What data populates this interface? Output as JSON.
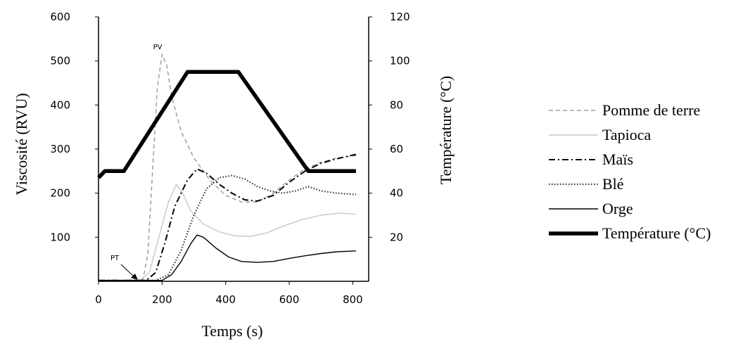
{
  "chart_data": {
    "type": "line",
    "xlabel": "Temps  (s)",
    "ylabel": "Viscosité  (RVU)",
    "y2label": "Température   (°C)",
    "xlim": [
      0,
      850
    ],
    "ylim": [
      0,
      600
    ],
    "y2lim": [
      0,
      120
    ],
    "x_ticks": [
      "0",
      "200",
      "400",
      "600",
      "800"
    ],
    "y_ticks": [
      "100",
      "200",
      "300",
      "400",
      "500",
      "600"
    ],
    "y2_ticks": [
      "20",
      "40",
      "60",
      "80",
      "100",
      "120"
    ],
    "grid": false,
    "legend_position": "right",
    "annotations": [
      {
        "text": "PV",
        "x": 200,
        "y": 515
      },
      {
        "text": "PT",
        "x": 120,
        "y": 10
      }
    ],
    "series": [
      {
        "name": "Pomme  de terre",
        "style": "dashed",
        "color": "#a0a0a0",
        "axis": "left",
        "points": [
          [
            0,
            2
          ],
          [
            120,
            2
          ],
          [
            140,
            5
          ],
          [
            155,
            60
          ],
          [
            170,
            250
          ],
          [
            185,
            440
          ],
          [
            200,
            515
          ],
          [
            215,
            490
          ],
          [
            230,
            420
          ],
          [
            260,
            340
          ],
          [
            300,
            280
          ],
          [
            350,
            230
          ],
          [
            400,
            195
          ],
          [
            450,
            180
          ],
          [
            500,
            180
          ],
          [
            550,
            200
          ],
          [
            600,
            230
          ],
          [
            650,
            255
          ],
          [
            700,
            270
          ],
          [
            750,
            280
          ],
          [
            810,
            285
          ]
        ]
      },
      {
        "name": "Tapioca",
        "style": "solid",
        "color": "#c8c8c8",
        "axis": "left",
        "points": [
          [
            0,
            2
          ],
          [
            130,
            2
          ],
          [
            160,
            20
          ],
          [
            190,
            100
          ],
          [
            220,
            180
          ],
          [
            245,
            220
          ],
          [
            265,
            200
          ],
          [
            290,
            160
          ],
          [
            330,
            130
          ],
          [
            380,
            112
          ],
          [
            430,
            103
          ],
          [
            480,
            102
          ],
          [
            530,
            110
          ],
          [
            580,
            125
          ],
          [
            640,
            140
          ],
          [
            700,
            150
          ],
          [
            760,
            155
          ],
          [
            810,
            152
          ]
        ]
      },
      {
        "name": "Maïs",
        "style": "dashdot",
        "color": "#000000",
        "axis": "left",
        "points": [
          [
            0,
            2
          ],
          [
            150,
            2
          ],
          [
            180,
            20
          ],
          [
            210,
            90
          ],
          [
            240,
            170
          ],
          [
            280,
            230
          ],
          [
            310,
            255
          ],
          [
            340,
            245
          ],
          [
            380,
            220
          ],
          [
            420,
            200
          ],
          [
            460,
            185
          ],
          [
            500,
            182
          ],
          [
            550,
            195
          ],
          [
            600,
            225
          ],
          [
            650,
            250
          ],
          [
            700,
            268
          ],
          [
            750,
            278
          ],
          [
            810,
            288
          ]
        ]
      },
      {
        "name": "Blé",
        "style": "dotted",
        "color": "#333333",
        "axis": "left",
        "points": [
          [
            0,
            2
          ],
          [
            180,
            2
          ],
          [
            220,
            15
          ],
          [
            260,
            70
          ],
          [
            300,
            150
          ],
          [
            340,
            210
          ],
          [
            380,
            235
          ],
          [
            420,
            240
          ],
          [
            460,
            232
          ],
          [
            500,
            215
          ],
          [
            540,
            205
          ],
          [
            580,
            200
          ],
          [
            620,
            205
          ],
          [
            660,
            215
          ],
          [
            700,
            205
          ],
          [
            750,
            200
          ],
          [
            810,
            197
          ]
        ]
      },
      {
        "name": "Orge",
        "style": "solid",
        "color": "#000000",
        "axis": "left",
        "points": [
          [
            0,
            2
          ],
          [
            200,
            2
          ],
          [
            230,
            15
          ],
          [
            260,
            45
          ],
          [
            290,
            85
          ],
          [
            310,
            105
          ],
          [
            330,
            100
          ],
          [
            370,
            75
          ],
          [
            410,
            55
          ],
          [
            450,
            45
          ],
          [
            500,
            43
          ],
          [
            550,
            45
          ],
          [
            600,
            52
          ],
          [
            650,
            58
          ],
          [
            700,
            63
          ],
          [
            750,
            67
          ],
          [
            810,
            69
          ]
        ]
      },
      {
        "name": "Température  (°C)",
        "style": "thick",
        "color": "#000000",
        "axis": "right",
        "points": [
          [
            0,
            47
          ],
          [
            20,
            50
          ],
          [
            60,
            50
          ],
          [
            80,
            50
          ],
          [
            280,
            95
          ],
          [
            300,
            95
          ],
          [
            440,
            95
          ],
          [
            660,
            50
          ],
          [
            700,
            50
          ],
          [
            810,
            50
          ]
        ]
      }
    ]
  }
}
